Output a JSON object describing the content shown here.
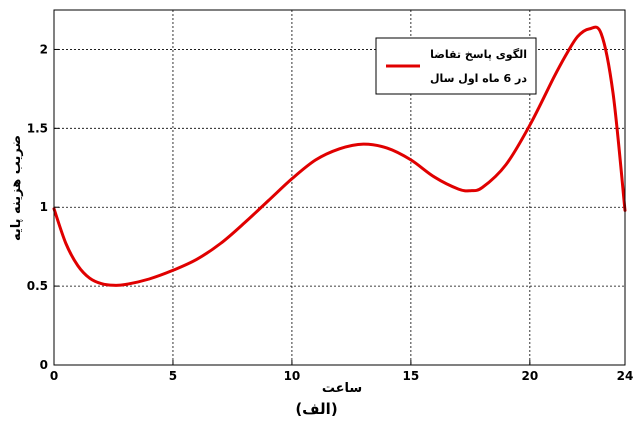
{
  "chart_data": {
    "type": "line",
    "xlabel": "ساعت",
    "ylabel": "ضریب هزینه پایه",
    "xlim": [
      0,
      24
    ],
    "ylim": [
      0,
      2.25
    ],
    "xticks": [
      0,
      5,
      10,
      15,
      20,
      24
    ],
    "yticks": [
      0,
      0.5,
      1,
      1.5,
      2
    ],
    "grid": true,
    "legend_position": "top-right",
    "series": [
      {
        "name": "الگوی پاسخ تقاضا در 6 ماه اول سال",
        "color": "#e00000",
        "x": [
          0,
          0.5,
          1,
          1.5,
          2,
          2.5,
          3,
          4,
          5,
          6,
          7,
          8,
          9,
          10,
          11,
          12,
          13,
          14,
          15,
          16,
          17,
          17.5,
          18,
          19,
          20,
          21,
          21.5,
          22,
          22.5,
          23,
          23.5,
          24
        ],
        "y": [
          0.99,
          0.77,
          0.63,
          0.55,
          0.515,
          0.505,
          0.51,
          0.545,
          0.6,
          0.67,
          0.77,
          0.9,
          1.04,
          1.18,
          1.3,
          1.37,
          1.4,
          1.375,
          1.3,
          1.19,
          1.115,
          1.105,
          1.125,
          1.27,
          1.52,
          1.82,
          1.96,
          2.08,
          2.13,
          2.1,
          1.72,
          0.98
        ]
      }
    ]
  },
  "caption": "(الف)"
}
